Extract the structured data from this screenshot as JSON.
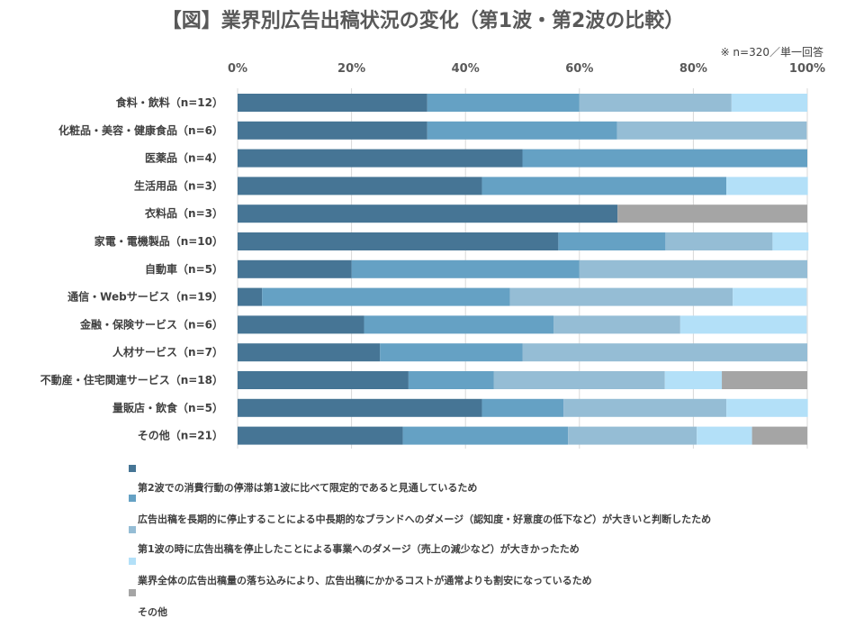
{
  "chart_data": {
    "type": "bar",
    "orientation": "horizontal",
    "stacked": "100%",
    "title": "【図】業界別広告出稿状況の変化（第1波・第2波の比較）",
    "note": "※ n=320／単一回答",
    "xlim": [
      0,
      100
    ],
    "x_ticks": [
      "0%",
      "20%",
      "40%",
      "60%",
      "80%",
      "100%"
    ],
    "grid": true,
    "legend_position": "bottom",
    "categories": [
      "食料・飲料（n=12）",
      "化粧品・美容・健康食品（n=6）",
      "医薬品（n=4）",
      "生活用品（n=3）",
      "衣料品（n=3）",
      "家電・電機製品（n=10）",
      "自動車（n=5）",
      "通信・Webサービス（n=19）",
      "金融・保険サービス（n=6）",
      "人材サービス（n=7）",
      "不動産・住宅関連サービス（n=18）",
      "量販店・飲食（n=5）",
      "その他（n=21）"
    ],
    "series": [
      {
        "name": "第2波での消費行動の停滞は第1波に比べて限定的であると見通しているため",
        "color": "#467595",
        "values": [
          33.3,
          33.3,
          50.0,
          42.9,
          66.7,
          56.3,
          20.0,
          4.3,
          22.2,
          25.0,
          30.0,
          42.9,
          29.0
        ]
      },
      {
        "name": "広告出稿を長期的に停止することによる中長期的なブランドへのダメージ（認知度・好意度の低下など）が大きいと判断したため",
        "color": "#65A1C4",
        "values": [
          26.7,
          33.3,
          50.0,
          42.9,
          0,
          18.8,
          40.0,
          43.5,
          33.3,
          25.0,
          15.0,
          14.3,
          29.0
        ]
      },
      {
        "name": "第1波の時に広告出稿を停止したことによる事業へのダメージ（売上の減少など）が大きかったため",
        "color": "#95BDD5",
        "values": [
          26.7,
          33.3,
          0,
          0,
          0,
          18.8,
          40.0,
          39.1,
          22.2,
          50.0,
          30.0,
          28.6,
          22.6
        ]
      },
      {
        "name": "業界全体の広告出稿量の落ち込みにより、広告出稿にかかるコストが通常よりも割安になっているため",
        "color": "#B3E0F8",
        "values": [
          13.3,
          0,
          0,
          14.3,
          0,
          6.3,
          0,
          13.0,
          22.2,
          0,
          10.0,
          14.3,
          9.7
        ]
      },
      {
        "name": "その他",
        "color": "#A5A5A5",
        "values": [
          0,
          0,
          0,
          0,
          33.3,
          0,
          0,
          0,
          0,
          0,
          15.0,
          0,
          9.7
        ]
      }
    ]
  }
}
